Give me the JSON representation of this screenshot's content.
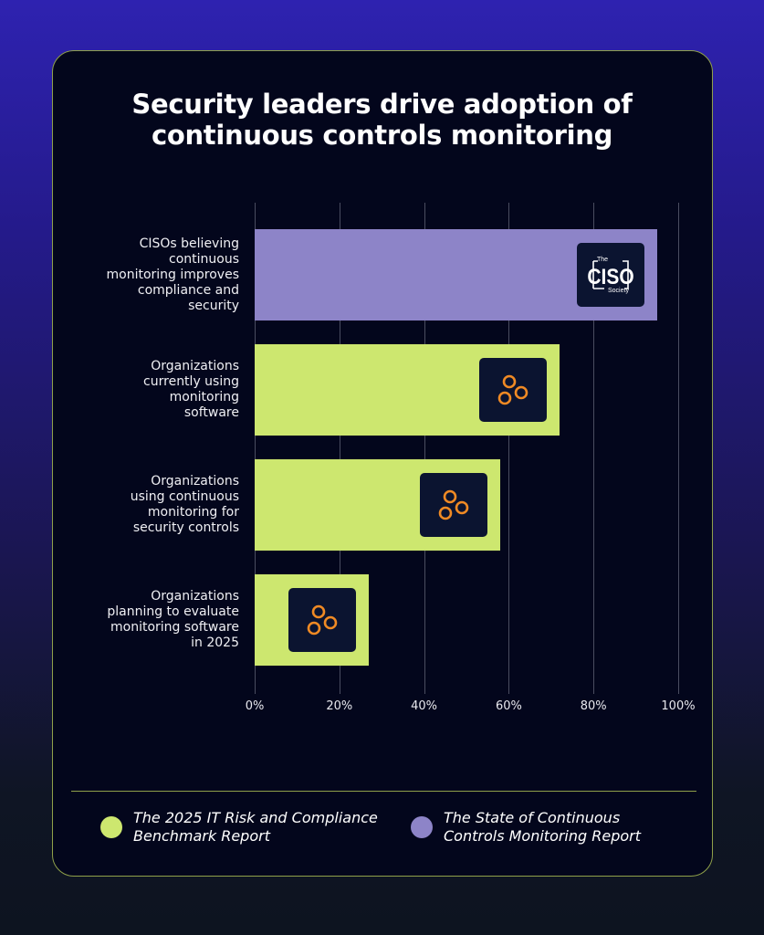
{
  "title_line1": "Security leaders drive adoption of",
  "title_line2": "continuous controls monitoring",
  "colors": {
    "green": "#cde76f",
    "purple": "#8d84c8",
    "background": "#03061c"
  },
  "chart_data": {
    "type": "bar",
    "orientation": "horizontal",
    "title": "Security leaders drive adoption of continuous controls monitoring",
    "categories": [
      "CISOs believing continuous monitoring improves compliance and security",
      "Organizations currently using monitoring software",
      "Organizations using continuous monitoring for security controls",
      "Organizations planning to evaluate monitoring software in 2025"
    ],
    "category_lines": [
      [
        "CISOs believing",
        "continuous",
        "monitoring improves",
        "compliance and",
        "security"
      ],
      [
        "Organizations",
        "currently using",
        "monitoring",
        "software"
      ],
      [
        "Organizations",
        "using continuous",
        "monitoring for",
        "security controls"
      ],
      [
        "Organizations",
        "planning to evaluate",
        "monitoring software",
        "in 2025"
      ]
    ],
    "values": [
      95,
      72,
      58,
      27
    ],
    "sources": [
      "purple",
      "green",
      "green",
      "green"
    ],
    "logos": [
      "ciso-society-logo",
      "rings-logo",
      "rings-logo",
      "rings-logo"
    ],
    "xlim": [
      0,
      100
    ],
    "x_ticks": [
      "0%",
      "20%",
      "40%",
      "60%",
      "80%",
      "100%"
    ],
    "grid": true,
    "legend_placement": "bottom"
  },
  "logo_text": {
    "the": "The",
    "ciso": "CISO",
    "society": "Society"
  },
  "legend": [
    {
      "line1": "The 2025 IT Risk and Compliance",
      "line2": "Benchmark Report",
      "color": "#cde76f"
    },
    {
      "line1": "The State of Continuous",
      "line2": "Controls Monitoring Report",
      "color": "#8d84c8"
    }
  ]
}
